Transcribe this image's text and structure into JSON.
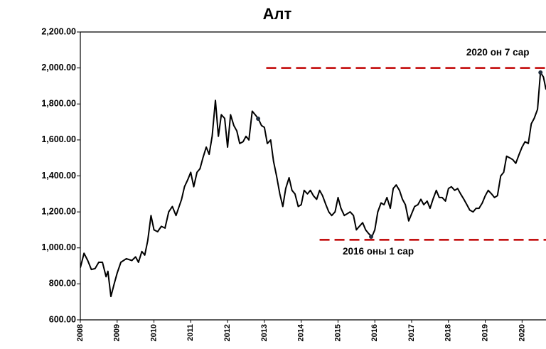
{
  "chart_data": {
    "type": "line",
    "title": "Алт",
    "xlim": [
      2008,
      2020.65
    ],
    "xticks": [
      2008,
      2009,
      2010,
      2011,
      2012,
      2013,
      2014,
      2015,
      2016,
      2017,
      2018,
      2019,
      2020
    ],
    "ylim": [
      600,
      2200
    ],
    "yticks": [
      {
        "value": 600,
        "label": "600.00"
      },
      {
        "value": 800,
        "label": "800.00"
      },
      {
        "value": 1000,
        "label": "1,000.00"
      },
      {
        "value": 1200,
        "label": "1,200.00"
      },
      {
        "value": 1400,
        "label": "1,400.00"
      },
      {
        "value": 1600,
        "label": "1,600.00"
      },
      {
        "value": 1800,
        "label": "1,800.00"
      },
      {
        "value": 2000,
        "label": "2,000.00"
      },
      {
        "value": 2200,
        "label": "2,200.00"
      }
    ],
    "color": "#000000",
    "x": [
      2008.0,
      2008.1,
      2008.2,
      2008.3,
      2008.4,
      2008.5,
      2008.6,
      2008.7,
      2008.75,
      2008.83,
      2008.92,
      2009.0,
      2009.1,
      2009.25,
      2009.4,
      2009.5,
      2009.58,
      2009.67,
      2009.75,
      2009.83,
      2009.92,
      2010.0,
      2010.1,
      2010.2,
      2010.3,
      2010.4,
      2010.5,
      2010.6,
      2010.75,
      2010.83,
      2010.92,
      2011.0,
      2011.08,
      2011.17,
      2011.25,
      2011.33,
      2011.42,
      2011.5,
      2011.58,
      2011.67,
      2011.75,
      2011.83,
      2011.92,
      2012.0,
      2012.08,
      2012.17,
      2012.25,
      2012.33,
      2012.42,
      2012.5,
      2012.58,
      2012.67,
      2012.75,
      2012.83,
      2012.92,
      2013.0,
      2013.08,
      2013.17,
      2013.25,
      2013.33,
      2013.42,
      2013.5,
      2013.58,
      2013.67,
      2013.75,
      2013.83,
      2013.92,
      2014.0,
      2014.08,
      2014.17,
      2014.25,
      2014.33,
      2014.42,
      2014.5,
      2014.58,
      2014.67,
      2014.75,
      2014.83,
      2014.92,
      2015.0,
      2015.08,
      2015.17,
      2015.25,
      2015.33,
      2015.42,
      2015.5,
      2015.58,
      2015.67,
      2015.75,
      2015.83,
      2015.92,
      2016.0,
      2016.08,
      2016.17,
      2016.25,
      2016.33,
      2016.42,
      2016.5,
      2016.58,
      2016.67,
      2016.75,
      2016.83,
      2016.92,
      2017.0,
      2017.08,
      2017.17,
      2017.25,
      2017.33,
      2017.42,
      2017.5,
      2017.58,
      2017.67,
      2017.75,
      2017.83,
      2017.92,
      2018.0,
      2018.08,
      2018.17,
      2018.25,
      2018.33,
      2018.42,
      2018.5,
      2018.58,
      2018.67,
      2018.75,
      2018.83,
      2018.92,
      2019.0,
      2019.08,
      2019.17,
      2019.25,
      2019.33,
      2019.42,
      2019.5,
      2019.58,
      2019.67,
      2019.75,
      2019.83,
      2019.92,
      2020.0,
      2020.08,
      2020.17,
      2020.25,
      2020.33,
      2020.42,
      2020.5,
      2020.58,
      2020.65
    ],
    "values": [
      890,
      970,
      930,
      880,
      885,
      920,
      920,
      840,
      870,
      730,
      800,
      860,
      920,
      940,
      930,
      950,
      920,
      980,
      960,
      1040,
      1180,
      1100,
      1090,
      1120,
      1110,
      1200,
      1230,
      1180,
      1270,
      1340,
      1380,
      1420,
      1340,
      1420,
      1440,
      1500,
      1560,
      1520,
      1620,
      1820,
      1620,
      1740,
      1720,
      1560,
      1740,
      1680,
      1650,
      1580,
      1590,
      1620,
      1600,
      1760,
      1740,
      1720,
      1680,
      1670,
      1580,
      1600,
      1480,
      1400,
      1300,
      1230,
      1330,
      1390,
      1320,
      1300,
      1230,
      1240,
      1320,
      1300,
      1320,
      1290,
      1270,
      1320,
      1290,
      1240,
      1200,
      1180,
      1200,
      1280,
      1220,
      1180,
      1190,
      1200,
      1180,
      1100,
      1120,
      1140,
      1100,
      1080,
      1062,
      1100,
      1200,
      1250,
      1240,
      1280,
      1220,
      1330,
      1350,
      1320,
      1270,
      1240,
      1150,
      1190,
      1230,
      1240,
      1270,
      1240,
      1260,
      1220,
      1270,
      1320,
      1280,
      1280,
      1260,
      1330,
      1340,
      1320,
      1330,
      1300,
      1270,
      1240,
      1210,
      1200,
      1220,
      1220,
      1250,
      1290,
      1320,
      1300,
      1280,
      1290,
      1400,
      1420,
      1510,
      1500,
      1490,
      1470,
      1520,
      1560,
      1590,
      1580,
      1690,
      1720,
      1770,
      1975,
      1950,
      1880
    ],
    "points": [
      {
        "x": 2012.83,
        "y": 1718
      },
      {
        "x": 2015.9,
        "y": 1062
      },
      {
        "x": 2020.5,
        "y": 1975
      }
    ],
    "annotations": [
      {
        "text": "2020 он 7 сар",
        "y": 2000,
        "x_start": 2013.05,
        "color": "#c00000"
      },
      {
        "text": "2016 оны 1 сар",
        "y": 1045,
        "x_start": 2014.5,
        "color": "#c00000"
      }
    ]
  }
}
